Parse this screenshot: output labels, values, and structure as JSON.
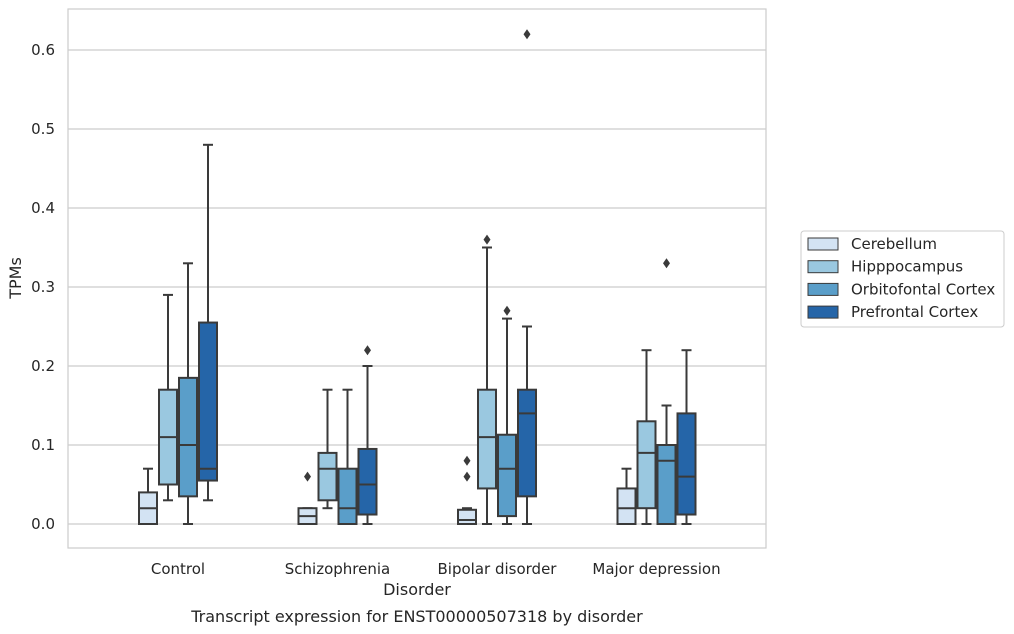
{
  "chart_data": {
    "type": "box",
    "title": "",
    "caption": "Transcript expression for ENST00000507318 by disorder",
    "xlabel": "Disorder",
    "ylabel": "TPMs",
    "ylim": [
      -0.03,
      0.65
    ],
    "yticks": [
      0.0,
      0.1,
      0.2,
      0.3,
      0.4,
      0.5,
      0.6
    ],
    "ytick_labels": [
      "0.0",
      "0.1",
      "0.2",
      "0.3",
      "0.4",
      "0.5",
      "0.6"
    ],
    "grid": true,
    "legend_position": "right",
    "categories": [
      "Control",
      "Schizophrenia",
      "Bipolar disorder",
      "Major depression"
    ],
    "series": [
      {
        "name": "Cerebellum",
        "color": "#d3e3f3",
        "boxes": [
          {
            "whisker_low": 0.0,
            "q1": 0.0,
            "median": 0.02,
            "q3": 0.04,
            "whisker_high": 0.07,
            "outliers": []
          },
          {
            "whisker_low": 0.0,
            "q1": 0.0,
            "median": 0.01,
            "q3": 0.02,
            "whisker_high": 0.02,
            "outliers": [
              0.06
            ]
          },
          {
            "whisker_low": 0.0,
            "q1": 0.0,
            "median": 0.005,
            "q3": 0.018,
            "whisker_high": 0.02,
            "outliers": [
              0.06,
              0.08
            ]
          },
          {
            "whisker_low": 0.0,
            "q1": 0.0,
            "median": 0.02,
            "q3": 0.045,
            "whisker_high": 0.07,
            "outliers": []
          }
        ]
      },
      {
        "name": "Hipppocampus",
        "color": "#9ac8e0",
        "boxes": [
          {
            "whisker_low": 0.03,
            "q1": 0.05,
            "median": 0.11,
            "q3": 0.17,
            "whisker_high": 0.29,
            "outliers": []
          },
          {
            "whisker_low": 0.02,
            "q1": 0.03,
            "median": 0.07,
            "q3": 0.09,
            "whisker_high": 0.17,
            "outliers": []
          },
          {
            "whisker_low": 0.0,
            "q1": 0.045,
            "median": 0.11,
            "q3": 0.17,
            "whisker_high": 0.35,
            "outliers": [
              0.36
            ]
          },
          {
            "whisker_low": 0.0,
            "q1": 0.02,
            "median": 0.09,
            "q3": 0.13,
            "whisker_high": 0.22,
            "outliers": []
          }
        ]
      },
      {
        "name": "Orbitofontal Cortex",
        "color": "#5a9ec9",
        "boxes": [
          {
            "whisker_low": 0.0,
            "q1": 0.035,
            "median": 0.1,
            "q3": 0.185,
            "whisker_high": 0.33,
            "outliers": []
          },
          {
            "whisker_low": 0.0,
            "q1": 0.0,
            "median": 0.02,
            "q3": 0.07,
            "whisker_high": 0.17,
            "outliers": []
          },
          {
            "whisker_low": 0.0,
            "q1": 0.01,
            "median": 0.07,
            "q3": 0.113,
            "whisker_high": 0.26,
            "outliers": [
              0.27
            ]
          },
          {
            "whisker_low": 0.0,
            "q1": 0.0,
            "median": 0.08,
            "q3": 0.1,
            "whisker_high": 0.15,
            "outliers": [
              0.33
            ]
          }
        ]
      },
      {
        "name": "Prefrontal Cortex",
        "color": "#2565a8",
        "boxes": [
          {
            "whisker_low": 0.03,
            "q1": 0.055,
            "median": 0.07,
            "q3": 0.255,
            "whisker_high": 0.48,
            "outliers": []
          },
          {
            "whisker_low": 0.0,
            "q1": 0.012,
            "median": 0.05,
            "q3": 0.095,
            "whisker_high": 0.2,
            "outliers": [
              0.22
            ]
          },
          {
            "whisker_low": 0.0,
            "q1": 0.035,
            "median": 0.14,
            "q3": 0.17,
            "whisker_high": 0.25,
            "outliers": [
              0.62
            ]
          },
          {
            "whisker_low": 0.0,
            "q1": 0.012,
            "median": 0.06,
            "q3": 0.14,
            "whisker_high": 0.22,
            "outliers": []
          }
        ]
      }
    ]
  }
}
